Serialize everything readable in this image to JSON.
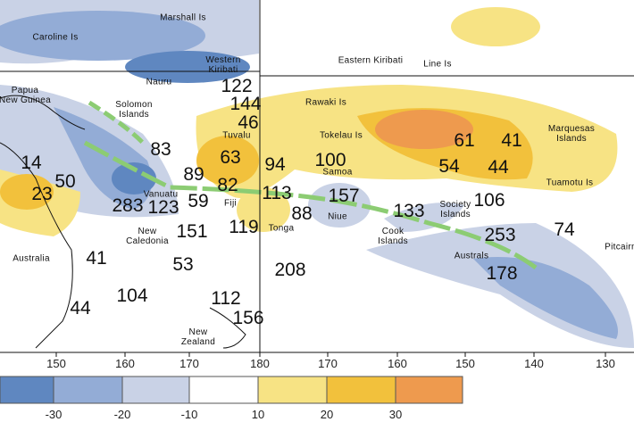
{
  "places": [
    "Marshall Is",
    "Caroline Is",
    "Western\nKiribati",
    "Nauru",
    "Eastern Kiribati",
    "Line Is",
    "Papua\nNew Guinea",
    "Solomon\nIslands",
    "Rawaki Is",
    "Tuvalu",
    "Tokelau Is",
    "Marquesas\nIslands",
    "Samoa",
    "Tuamotu Is",
    "Vanuatu",
    "Fiji",
    "Society\nIslands",
    "Niue",
    "New\nCaledonia",
    "Tonga",
    "Cook\nIslands",
    "Australs",
    "Pitcairn",
    "Australia",
    "New\nZealand"
  ],
  "station_values": [
    122,
    144,
    46,
    83,
    61,
    41,
    63,
    94,
    100,
    54,
    44,
    14,
    50,
    89,
    82,
    113,
    157,
    106,
    23,
    283,
    123,
    59,
    88,
    133,
    151,
    119,
    253,
    74,
    41,
    53,
    208,
    178,
    104,
    112,
    44,
    156
  ],
  "longitude_labels": [
    150,
    160,
    170,
    180,
    170,
    160,
    150,
    140,
    130
  ],
  "legend": {
    "labels": [
      -30,
      -20,
      -10,
      10,
      20,
      30
    ],
    "colors": [
      "#5f87c0",
      "#93acd6",
      "#c9d2e6",
      "#ffffff",
      "#f7e384",
      "#f2c13c",
      "#ee9a4e"
    ]
  }
}
